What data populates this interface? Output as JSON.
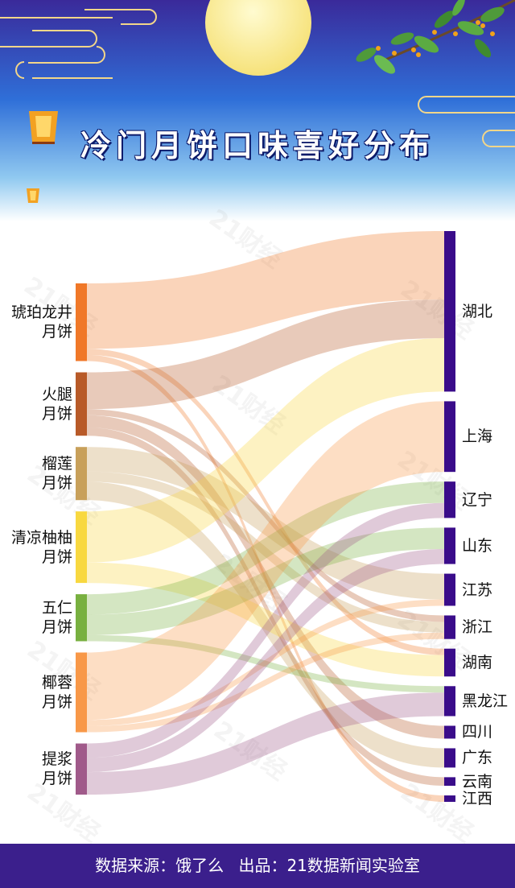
{
  "title": "冷门月饼口味喜好分布",
  "watermark": "21财经",
  "footer": {
    "source": "数据来源：饿了么",
    "producer": "出品：21数据新闻实验室"
  },
  "colors": {
    "header_top": "#3a2a9a",
    "header_mid": "#2f86e0",
    "moon": "#fbeea0",
    "footer_bg": "#3b1f8c",
    "target_bar": "#3a0c8a"
  },
  "chart_data": {
    "type": "sankey",
    "title": "冷门月饼口味喜好分布",
    "sources": [
      {
        "name": "琥珀龙井月饼",
        "label_lines": [
          "琥珀龙井",
          "月饼"
        ],
        "color": "#f07828"
      },
      {
        "name": "火腿月饼",
        "label_lines": [
          "火腿",
          "月饼"
        ],
        "color": "#b85a28"
      },
      {
        "name": "榴莲月饼",
        "label_lines": [
          "榴莲",
          "月饼"
        ],
        "color": "#c8a05a"
      },
      {
        "name": "清凉柚柚月饼",
        "label_lines": [
          "清凉柚柚",
          "月饼"
        ],
        "color": "#f8d840"
      },
      {
        "name": "五仁月饼",
        "label_lines": [
          "五仁",
          "月饼"
        ],
        "color": "#78b040"
      },
      {
        "name": "椰蓉月饼",
        "label_lines": [
          "椰蓉",
          "月饼"
        ],
        "color": "#f89848"
      },
      {
        "name": "提浆月饼",
        "label_lines": [
          "提浆",
          "月饼"
        ],
        "color": "#a05a8a"
      }
    ],
    "targets": [
      "湖北",
      "上海",
      "辽宁",
      "山东",
      "江苏",
      "浙江",
      "湖南",
      "黑龙江",
      "四川",
      "广东",
      "云南",
      "江西"
    ],
    "links": [
      {
        "source": "琥珀龙井月饼",
        "target": "湖北",
        "value": 32
      },
      {
        "source": "琥珀龙井月饼",
        "target": "湖南",
        "value": 3
      },
      {
        "source": "琥珀龙井月饼",
        "target": "江西",
        "value": 3
      },
      {
        "source": "火腿月饼",
        "target": "湖北",
        "value": 18
      },
      {
        "source": "火腿月饼",
        "target": "浙江",
        "value": 3
      },
      {
        "source": "火腿月饼",
        "target": "四川",
        "value": 6
      },
      {
        "source": "火腿月饼",
        "target": "云南",
        "value": 4
      },
      {
        "source": "榴莲月饼",
        "target": "江苏",
        "value": 12
      },
      {
        "source": "榴莲月饼",
        "target": "浙江",
        "value": 5
      },
      {
        "source": "榴莲月饼",
        "target": "广东",
        "value": 9
      },
      {
        "source": "清凉柚柚月饼",
        "target": "湖北",
        "value": 25
      },
      {
        "source": "清凉柚柚月饼",
        "target": "湖南",
        "value": 10
      },
      {
        "source": "五仁月饼",
        "target": "辽宁",
        "value": 10
      },
      {
        "source": "五仁月饼",
        "target": "山东",
        "value": 10
      },
      {
        "source": "五仁月饼",
        "target": "黑龙江",
        "value": 3
      },
      {
        "source": "椰蓉月饼",
        "target": "上海",
        "value": 33
      },
      {
        "source": "椰蓉月饼",
        "target": "江苏",
        "value": 3
      },
      {
        "source": "椰蓉月饼",
        "target": "浙江",
        "value": 3
      },
      {
        "source": "提浆月饼",
        "target": "辽宁",
        "value": 7
      },
      {
        "source": "提浆月饼",
        "target": "山东",
        "value": 7
      },
      {
        "source": "提浆月饼",
        "target": "黑龙江",
        "value": 11
      }
    ]
  }
}
